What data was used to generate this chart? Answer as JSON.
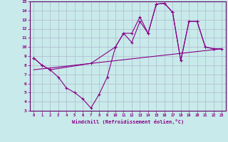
{
  "xlabel": "Windchill (Refroidissement éolien,°C)",
  "bg_color": "#c8eaea",
  "grid_color": "#b0b8d0",
  "line_color": "#880088",
  "spine_color": "#660066",
  "xlim": [
    -0.5,
    23.5
  ],
  "ylim": [
    3,
    15
  ],
  "xticks": [
    0,
    1,
    2,
    3,
    4,
    5,
    6,
    7,
    8,
    9,
    10,
    11,
    12,
    13,
    14,
    15,
    16,
    17,
    18,
    19,
    20,
    21,
    22,
    23
  ],
  "yticks": [
    3,
    4,
    5,
    6,
    7,
    8,
    9,
    10,
    11,
    12,
    13,
    14,
    15
  ],
  "line1_x": [
    0,
    1,
    2,
    3,
    4,
    5,
    6,
    7,
    8,
    9,
    10,
    11,
    12,
    13,
    14,
    15,
    16,
    17,
    18,
    19,
    20,
    21,
    22,
    23
  ],
  "line1_y": [
    8.8,
    8.0,
    7.5,
    6.7,
    5.5,
    5.0,
    4.3,
    3.3,
    4.8,
    6.7,
    10.0,
    11.5,
    10.5,
    12.8,
    11.5,
    14.7,
    14.8,
    13.8,
    8.5,
    12.8,
    12.8,
    10.0,
    9.8,
    9.8
  ],
  "line2_x": [
    0,
    1,
    2,
    7,
    10,
    11,
    12,
    13,
    14,
    15,
    16,
    17,
    18,
    19,
    20,
    21,
    22,
    23
  ],
  "line2_y": [
    8.8,
    8.0,
    7.5,
    8.2,
    10.0,
    11.5,
    11.5,
    13.3,
    11.5,
    14.7,
    14.8,
    13.8,
    8.5,
    12.8,
    12.8,
    10.0,
    9.8,
    9.8
  ],
  "line3_x": [
    0,
    23
  ],
  "line3_y": [
    7.5,
    9.8
  ]
}
